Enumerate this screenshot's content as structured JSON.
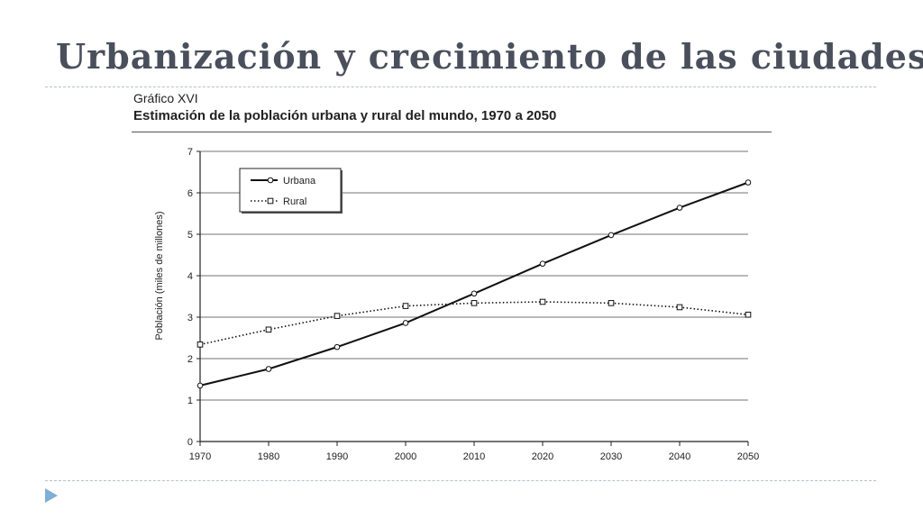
{
  "slide": {
    "title": "Urbanización y crecimiento de las ciudades"
  },
  "chart_data": {
    "type": "line",
    "kicker": "Gráfico XVI",
    "title": "Estimación de la población urbana y rural del mundo, 1970 a 2050",
    "xlabel": "",
    "ylabel": "Población (miles de millones)",
    "x": [
      1970,
      1980,
      1990,
      2000,
      2010,
      2020,
      2030,
      2040,
      2050
    ],
    "ylim": [
      0,
      7
    ],
    "yticks": [
      0,
      1,
      2,
      3,
      4,
      5,
      6,
      7
    ],
    "grid": true,
    "legend_position": "top-left",
    "series": [
      {
        "name": "Urbana",
        "style": "solid",
        "marker": "circle",
        "color": "#111111",
        "values": [
          1.35,
          1.75,
          2.28,
          2.86,
          3.57,
          4.29,
          4.98,
          5.64,
          6.25
        ]
      },
      {
        "name": "Rural",
        "style": "dotted",
        "marker": "square",
        "color": "#111111",
        "values": [
          2.34,
          2.7,
          3.03,
          3.27,
          3.34,
          3.37,
          3.34,
          3.24,
          3.06
        ]
      }
    ]
  }
}
